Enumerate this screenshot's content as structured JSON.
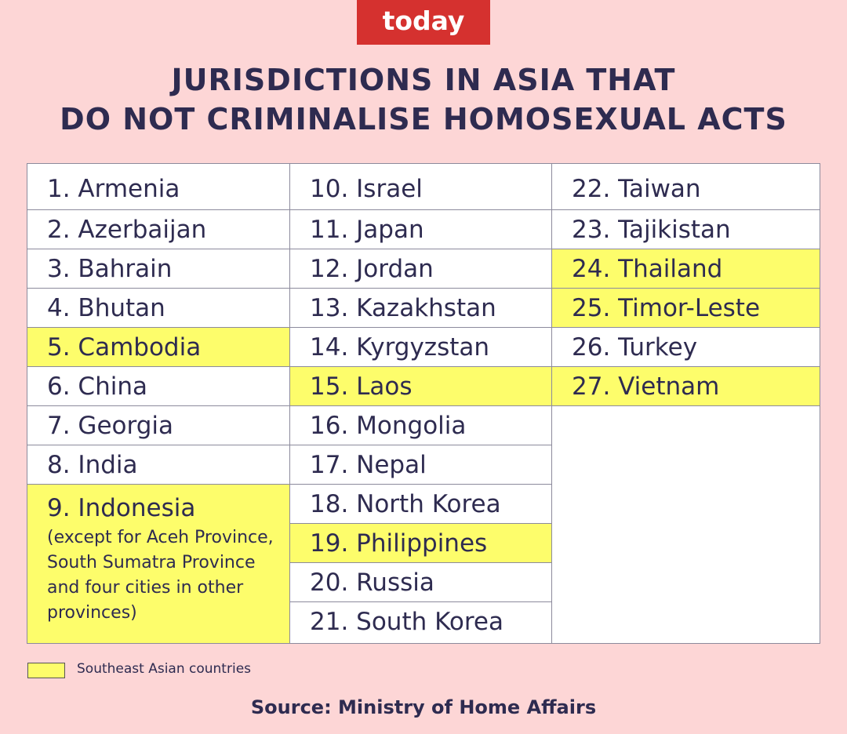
{
  "logo": "today",
  "title": [
    "JURISDICTIONS IN ASIA THAT",
    "DO NOT CRIMINALISE HOMOSEXUAL ACTS"
  ],
  "highlight_color": "#fdfd6b",
  "columns": [
    {
      "items": [
        {
          "label": "1. Armenia",
          "highlight": false
        },
        {
          "label": "2. Azerbaijan",
          "highlight": false
        },
        {
          "label": "3. Bahrain",
          "highlight": false
        },
        {
          "label": "4. Bhutan",
          "highlight": false
        },
        {
          "label": "5. Cambodia",
          "highlight": true
        },
        {
          "label": "6. China",
          "highlight": false
        },
        {
          "label": "7. Georgia",
          "highlight": false
        },
        {
          "label": "8. India",
          "highlight": false
        },
        {
          "label": "9. Indonesia",
          "note": "(except for Aceh Province, South Sumatra Province and four cities in other provinces)",
          "highlight": true
        }
      ]
    },
    {
      "items": [
        {
          "label": "10. Israel",
          "highlight": false
        },
        {
          "label": "11. Japan",
          "highlight": false
        },
        {
          "label": "12. Jordan",
          "highlight": false
        },
        {
          "label": "13. Kazakhstan",
          "highlight": false
        },
        {
          "label": "14. Kyrgyzstan",
          "highlight": false
        },
        {
          "label": "15. Laos",
          "highlight": true
        },
        {
          "label": "16. Mongolia",
          "highlight": false
        },
        {
          "label": "17. Nepal",
          "highlight": false
        },
        {
          "label": "18. North Korea",
          "highlight": false
        },
        {
          "label": "19. Philippines",
          "highlight": true
        },
        {
          "label": "20. Russia",
          "highlight": false
        },
        {
          "label": "21. South Korea",
          "highlight": false
        }
      ]
    },
    {
      "items": [
        {
          "label": "22. Taiwan",
          "highlight": false
        },
        {
          "label": "23. Tajikistan",
          "highlight": false
        },
        {
          "label": "24. Thailand",
          "highlight": true
        },
        {
          "label": "25. Timor-Leste",
          "highlight": true
        },
        {
          "label": "26. Turkey",
          "highlight": false
        },
        {
          "label": "27. Vietnam",
          "highlight": true
        }
      ]
    }
  ],
  "legend": "Southeast Asian countries",
  "source": "Source: Ministry of Home Affairs"
}
